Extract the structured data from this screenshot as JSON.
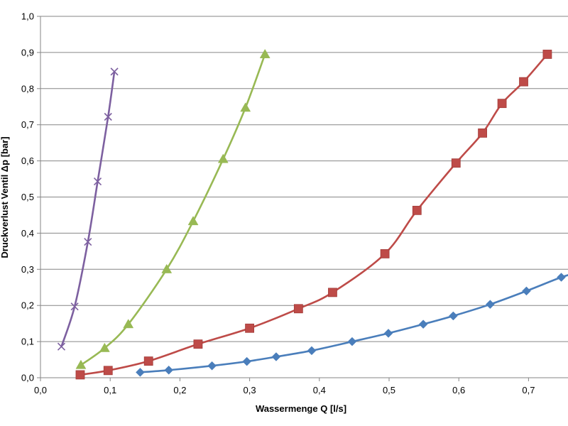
{
  "chart_data": {
    "type": "line",
    "xlabel": "Wassermenge Q [l/s]",
    "ylabel": "Druckverlust Ventil Δp [bar]",
    "xlim": [
      0,
      0.77
    ],
    "ylim": [
      0,
      1.0
    ],
    "x_ticks": [
      "0,0",
      "0,1",
      "0,2",
      "0,3",
      "0,4",
      "0,5",
      "0,6",
      "0,7"
    ],
    "y_ticks": [
      "0,0",
      "0,1",
      "0,2",
      "0,3",
      "0,4",
      "0,5",
      "0,6",
      "0,7",
      "0,8",
      "0,9",
      "1,0"
    ],
    "grid": "horizontal",
    "legend": "none",
    "series": [
      {
        "color": "#4a7ebb",
        "marker": "diamond",
        "points": [
          [
            0.143,
            0.015
          ],
          [
            0.184,
            0.021
          ],
          [
            0.246,
            0.033
          ],
          [
            0.296,
            0.045
          ],
          [
            0.338,
            0.058
          ],
          [
            0.389,
            0.075
          ],
          [
            0.447,
            0.1
          ],
          [
            0.499,
            0.123
          ],
          [
            0.549,
            0.148
          ],
          [
            0.592,
            0.171
          ],
          [
            0.645,
            0.203
          ],
          [
            0.697,
            0.24
          ],
          [
            0.747,
            0.278
          ],
          [
            0.77,
            0.29
          ]
        ]
      },
      {
        "color": "#be4b48",
        "marker": "square",
        "points": [
          [
            0.057,
            0.008
          ],
          [
            0.097,
            0.02
          ],
          [
            0.155,
            0.046
          ],
          [
            0.226,
            0.093
          ],
          [
            0.3,
            0.137
          ],
          [
            0.37,
            0.191
          ],
          [
            0.419,
            0.236
          ],
          [
            0.494,
            0.343
          ],
          [
            0.54,
            0.463
          ],
          [
            0.596,
            0.594
          ],
          [
            0.634,
            0.677
          ],
          [
            0.662,
            0.759
          ],
          [
            0.693,
            0.819
          ],
          [
            0.727,
            0.895
          ]
        ]
      },
      {
        "color": "#98b954",
        "marker": "triangle",
        "points": [
          [
            0.058,
            0.035
          ],
          [
            0.092,
            0.082
          ],
          [
            0.126,
            0.148
          ],
          [
            0.181,
            0.3
          ],
          [
            0.219,
            0.433
          ],
          [
            0.262,
            0.605
          ],
          [
            0.294,
            0.747
          ],
          [
            0.322,
            0.895
          ]
        ]
      },
      {
        "color": "#7d60a0",
        "marker": "x",
        "points": [
          [
            0.03,
            0.086
          ],
          [
            0.049,
            0.197
          ],
          [
            0.068,
            0.376
          ],
          [
            0.082,
            0.543
          ],
          [
            0.097,
            0.722
          ],
          [
            0.106,
            0.847
          ]
        ]
      }
    ]
  }
}
